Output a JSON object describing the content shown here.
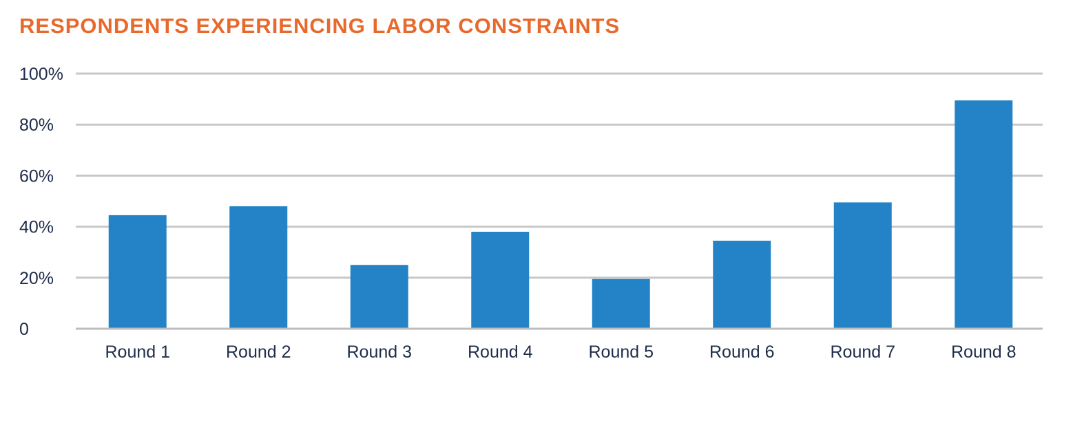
{
  "chart_data": {
    "type": "bar",
    "title": "RESPONDENTS EXPERIENCING LABOR CONSTRAINTS",
    "xlabel": "",
    "ylabel": "",
    "categories": [
      "Round 1",
      "Round 2",
      "Round 3",
      "Round 4",
      "Round 5",
      "Round 6",
      "Round 7",
      "Round 8"
    ],
    "values": [
      44.5,
      48,
      25,
      38,
      19.5,
      34.5,
      49.5,
      89.5
    ],
    "ylim": [
      0,
      100
    ],
    "yticks": [
      0,
      20,
      40,
      60,
      80,
      100
    ],
    "ytick_labels": [
      "0",
      "20%",
      "40%",
      "60%",
      "80%",
      "100%"
    ],
    "grid": true,
    "legend": "none"
  },
  "colors": {
    "title": "#E8692C",
    "bar": "#2383C6",
    "text": "#1F2D4A",
    "grid": "#C8C8C8",
    "axis": "#BDBDBD"
  }
}
